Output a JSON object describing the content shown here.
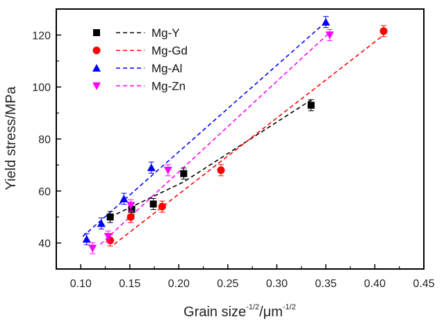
{
  "chart_data": {
    "type": "scatter",
    "title": "",
    "xlabel": "Grain size",
    "xlabel_sup": "-1/2",
    "xlabel_unit": "/μm",
    "xlabel_unit_sup": "-1/2",
    "ylabel": "Yield stress/MPa",
    "xlim": [
      0.075,
      0.45
    ],
    "ylim": [
      30,
      130
    ],
    "x_ticks": [
      0.1,
      0.15,
      0.2,
      0.25,
      0.3,
      0.35,
      0.4,
      0.45
    ],
    "x_tick_labels": [
      "0.10",
      "0.15",
      "0.20",
      "0.25",
      "0.30",
      "0.35",
      "0.40",
      "0.45"
    ],
    "y_ticks": [
      40,
      60,
      80,
      100,
      120
    ],
    "y_tick_labels": [
      "40",
      "60",
      "80",
      "100",
      "120"
    ],
    "grid": false,
    "legend_position": "top-left",
    "series": [
      {
        "name": "Mg-Y",
        "color": "#000000",
        "marker": "square",
        "x": [
          0.13,
          0.152,
          0.174,
          0.205,
          0.335
        ],
        "y": [
          50,
          53,
          55,
          66.7,
          93
        ],
        "fit_line": {
          "x": [
            0.13,
            0.205,
            0.335
          ],
          "y": [
            50,
            63.5,
            95
          ]
        }
      },
      {
        "name": "Mg-Gd",
        "color": "#ff0000",
        "marker": "circle",
        "x": [
          0.13,
          0.151,
          0.183,
          0.243,
          0.409
        ],
        "y": [
          41,
          50,
          54,
          68,
          121.5
        ],
        "fit_line": {
          "x": [
            0.134,
            0.409
          ],
          "y": [
            39.5,
            120
          ]
        }
      },
      {
        "name": "Mg-Al",
        "color": "#0000ff",
        "marker": "triangle-up",
        "x": [
          0.106,
          0.121,
          0.144,
          0.172,
          0.35
        ],
        "y": [
          41.5,
          47.5,
          57,
          69,
          125
        ],
        "fit_line": {
          "x": [
            0.102,
            0.35
          ],
          "y": [
            42.5,
            125
          ]
        }
      },
      {
        "name": "Mg-Zn",
        "color": "#ff00ff",
        "marker": "triangle-down",
        "x": [
          0.112,
          0.128,
          0.151,
          0.189,
          0.354
        ],
        "y": [
          38,
          42.5,
          54.5,
          68,
          120
        ],
        "fit_line": {
          "x": [
            0.12,
            0.354
          ],
          "y": [
            39.5,
            121
          ]
        }
      }
    ]
  }
}
